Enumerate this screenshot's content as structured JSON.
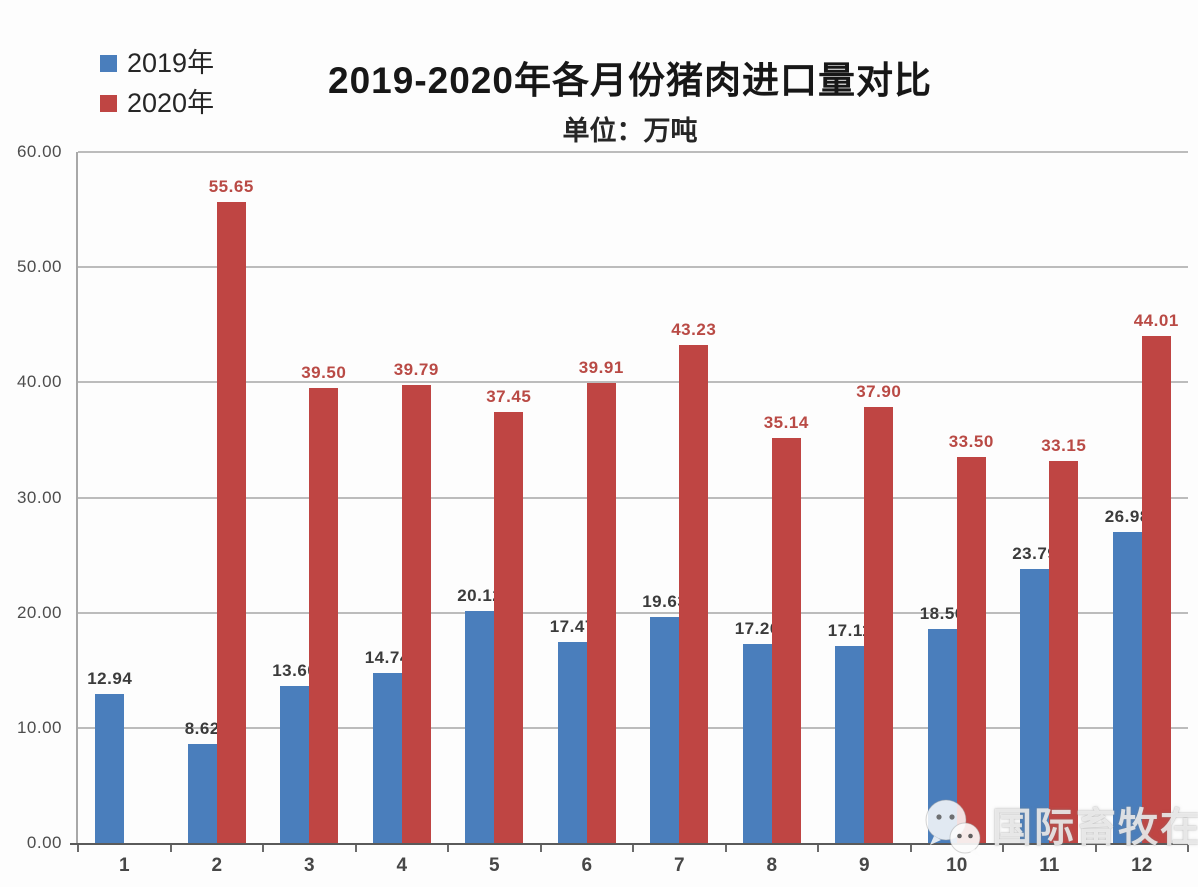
{
  "title": "2019-2020年各月份猪肉进口量对比",
  "subtitle": "单位：万吨",
  "legend": {
    "items": [
      {
        "label": "2019年",
        "color": "#4a7ebc"
      },
      {
        "label": "2020年",
        "color": "#bf4543"
      }
    ]
  },
  "watermark": {
    "icon": "wechat-icon",
    "text": "国际畜牧在线"
  },
  "chart_data": {
    "type": "bar",
    "title": "2019-2020年各月份猪肉进口量对比",
    "unit_label": "单位：万吨",
    "categories": [
      "1",
      "2",
      "3",
      "4",
      "5",
      "6",
      "7",
      "8",
      "9",
      "10",
      "11",
      "12"
    ],
    "series": [
      {
        "name": "2019年",
        "color": "#4a7ebc",
        "label_color": "#3b3b3b",
        "values": [
          12.94,
          8.62,
          13.6,
          14.74,
          20.12,
          17.47,
          19.63,
          17.26,
          17.11,
          18.56,
          23.79,
          26.98
        ]
      },
      {
        "name": "2020年",
        "color": "#bf4543",
        "label_color": "#b94a45",
        "values": [
          null,
          55.65,
          39.5,
          39.79,
          37.45,
          39.91,
          43.23,
          35.14,
          37.9,
          33.5,
          33.15,
          44.01
        ]
      }
    ],
    "ylim": [
      0,
      60
    ],
    "ytick_step": 10,
    "yticks": [
      "60.00",
      "50.00",
      "40.00",
      "30.00",
      "20.00",
      "10.00",
      "0.00"
    ],
    "value_label_decimals": 2,
    "grid": true,
    "legend_position": "top-left"
  }
}
